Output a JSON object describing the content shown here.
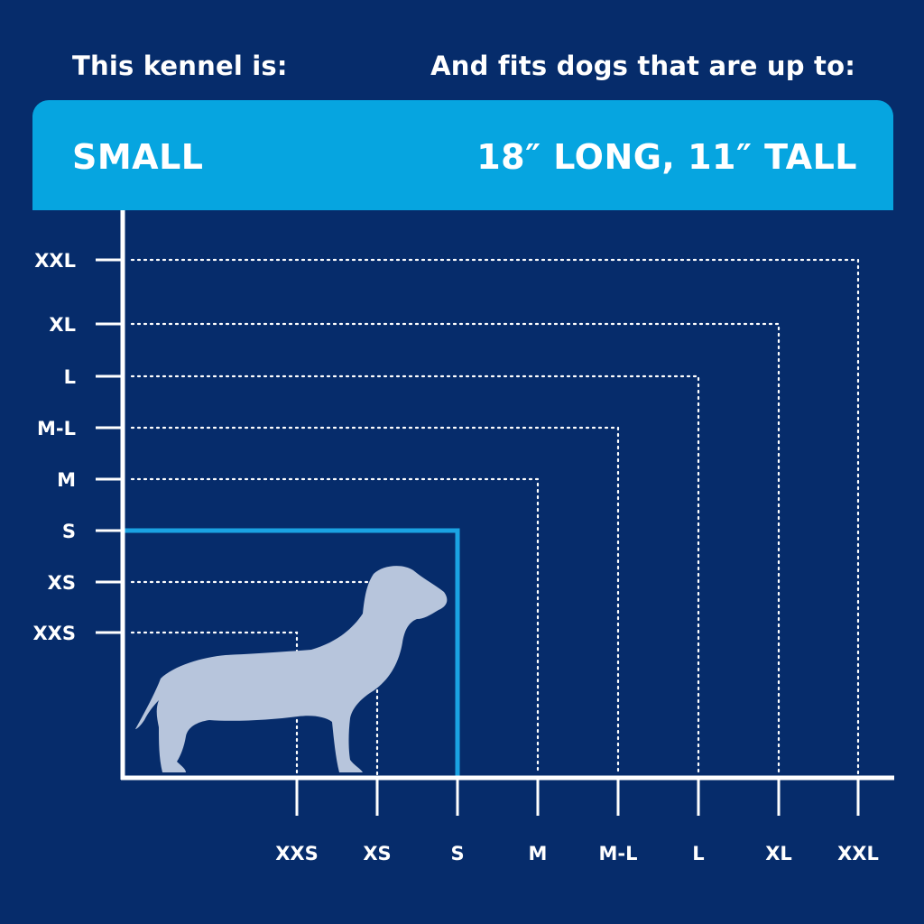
{
  "header": {
    "left_label": "This kennel is:",
    "right_label": "And fits dogs that are up to:"
  },
  "banner": {
    "size": "SMALL",
    "fit": "18″ LONG, 11″ TALL"
  },
  "sizes": [
    "XXS",
    "XS",
    "S",
    "M",
    "M-L",
    "L",
    "XL",
    "XXL"
  ],
  "selected_size": "S",
  "colors": {
    "background": "#062c6b",
    "banner": "#06a5e0",
    "highlight": "#1aa3e3",
    "dog": "#b7c5dc",
    "axis": "#ffffff"
  },
  "icon": "dachshund-silhouette-icon"
}
